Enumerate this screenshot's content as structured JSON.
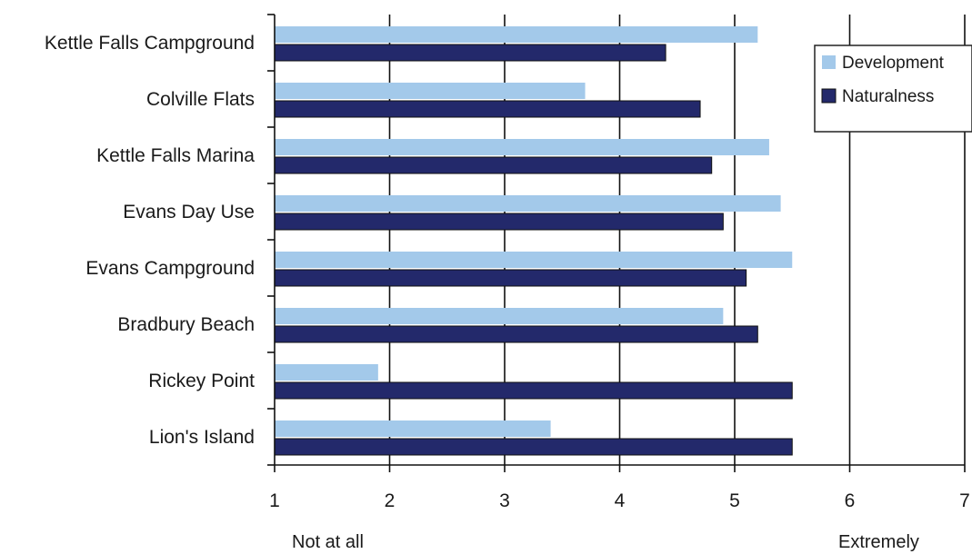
{
  "chart_data": {
    "type": "bar",
    "orientation": "horizontal",
    "categories": [
      "Kettle Falls Campground",
      "Colville Flats",
      "Kettle Falls Marina",
      "Evans Day Use",
      "Evans Campground",
      "Bradbury Beach",
      "Rickey Point",
      "Lion's Island"
    ],
    "series": [
      {
        "name": "Development",
        "color": "#a3c9ea",
        "values": [
          5.2,
          3.7,
          5.3,
          5.4,
          5.5,
          4.9,
          1.9,
          3.4
        ]
      },
      {
        "name": "Naturalness",
        "color": "#23296b",
        "values": [
          4.4,
          4.7,
          4.8,
          4.9,
          5.1,
          5.2,
          5.5,
          5.5
        ]
      }
    ],
    "xlim": [
      1,
      7
    ],
    "xticks": [
      "1",
      "2",
      "3",
      "4",
      "5",
      "6",
      "7"
    ],
    "grid": "vertical major gridlines",
    "legend_position": "top-right",
    "annotations": {
      "low": "Not at all",
      "high": "Extremely"
    }
  }
}
